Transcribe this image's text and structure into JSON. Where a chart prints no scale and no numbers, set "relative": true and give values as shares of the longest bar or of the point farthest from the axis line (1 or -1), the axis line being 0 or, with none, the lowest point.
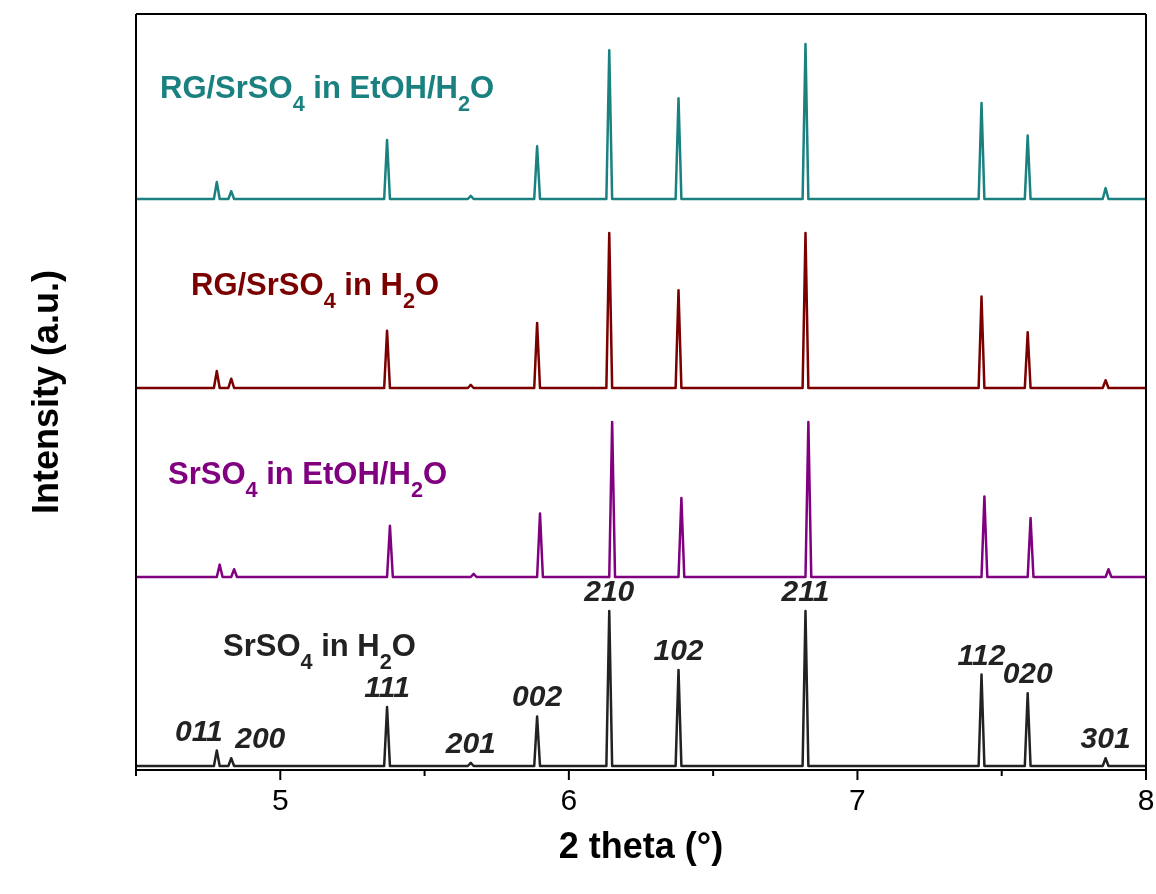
{
  "chart_data": [
    {
      "type": "line",
      "relative": true,
      "xlim": [
        4.5,
        8
      ],
      "tick_labels": false,
      "legend": false,
      "x": [
        4.5,
        4.77,
        4.78,
        4.79,
        4.82,
        4.83,
        4.84,
        5.36,
        5.37,
        5.38,
        5.65,
        5.66,
        5.67,
        5.88,
        5.89,
        5.9,
        6.13,
        6.14,
        6.15,
        6.37,
        6.38,
        6.39,
        6.81,
        6.82,
        6.83,
        7.42,
        7.43,
        7.44,
        7.58,
        7.59,
        7.6,
        7.85,
        7.86,
        7.87,
        8
      ],
      "series": [
        {
          "name": "RG/SrSO$_{4}$ in EtOH/H$_{2}$O",
          "color": "#1a8080",
          "values": [
            0,
            0,
            0.11,
            0,
            0,
            0.05,
            0,
            0,
            0.38,
            0,
            0,
            0.02,
            0,
            0,
            0.34,
            0,
            0,
            0.96,
            0,
            0,
            0.65,
            0,
            0,
            1,
            0,
            0,
            0.62,
            0,
            0,
            0.41,
            0,
            0,
            0.07,
            0,
            0
          ]
        }
      ]
    },
    {
      "type": "line",
      "relative": true,
      "xlim": [
        4.5,
        8
      ],
      "tick_labels": false,
      "legend": false,
      "x": [
        4.5,
        4.77,
        4.78,
        4.79,
        4.82,
        4.83,
        4.84,
        5.36,
        5.37,
        5.38,
        5.65,
        5.66,
        5.67,
        5.88,
        5.89,
        5.9,
        6.13,
        6.14,
        6.15,
        6.37,
        6.38,
        6.39,
        6.81,
        6.82,
        6.83,
        7.42,
        7.43,
        7.44,
        7.58,
        7.59,
        7.6,
        7.85,
        7.86,
        7.87,
        8
      ],
      "series": [
        {
          "name": "RG/SrSO$_{4}$ in H$_{2}$O",
          "color": "#7b0000",
          "values": [
            0,
            0,
            0.11,
            0,
            0,
            0.06,
            0,
            0,
            0.37,
            0,
            0,
            0.02,
            0,
            0,
            0.42,
            0,
            0,
            1,
            0,
            0,
            0.63,
            0,
            0,
            1,
            0,
            0,
            0.59,
            0,
            0,
            0.36,
            0,
            0,
            0.05,
            0,
            0
          ]
        }
      ]
    },
    {
      "type": "line",
      "relative": true,
      "xlim": [
        4.5,
        8
      ],
      "tick_labels": false,
      "legend": false,
      "x": [
        4.5,
        4.78,
        4.79,
        4.8,
        4.83,
        4.84,
        4.85,
        5.37,
        5.38,
        5.39,
        5.66,
        5.67,
        5.68,
        5.89,
        5.9,
        5.91,
        6.14,
        6.15,
        6.16,
        6.38,
        6.39,
        6.4,
        6.82,
        6.83,
        6.84,
        7.43,
        7.44,
        7.45,
        7.59,
        7.6,
        7.61,
        7.86,
        7.87,
        7.88,
        8
      ],
      "series": [
        {
          "name": "SrSO$_{4}$ in EtOH/H$_{2}$O",
          "color": "#800080",
          "values": [
            0,
            0,
            0.08,
            0,
            0,
            0.05,
            0,
            0,
            0.33,
            0,
            0,
            0.02,
            0,
            0,
            0.41,
            0,
            0,
            1,
            0,
            0,
            0.51,
            0,
            0,
            1,
            0,
            0,
            0.52,
            0,
            0,
            0.38,
            0,
            0,
            0.05,
            0,
            0
          ]
        }
      ]
    },
    {
      "type": "line",
      "relative": true,
      "xlim": [
        4.5,
        8
      ],
      "tick_labels": "x",
      "legend": false,
      "xticks": [
        {
          "value": 4.5,
          "label": null
        },
        5,
        {
          "value": 5.5,
          "label": null
        },
        6,
        {
          "value": 6.5,
          "label": null
        },
        7,
        {
          "value": 7.5,
          "label": null
        },
        8
      ],
      "xlabel": "2 theta (°)",
      "ylabel": "Intensity (a.u.)",
      "x": [
        4.5,
        4.77,
        4.78,
        4.79,
        4.82,
        4.83,
        4.84,
        5.36,
        5.37,
        5.38,
        5.65,
        5.66,
        5.67,
        5.88,
        5.89,
        5.9,
        6.13,
        6.14,
        6.15,
        6.37,
        6.38,
        6.39,
        6.81,
        6.82,
        6.83,
        7.42,
        7.43,
        7.44,
        7.58,
        7.59,
        7.6,
        7.85,
        7.86,
        7.87,
        8
      ],
      "series": [
        {
          "name": "SrSO$_{4}$ in H$_{2}$O",
          "color": "#222222",
          "values": [
            0,
            0,
            0.1,
            0,
            0,
            0.05,
            0,
            0,
            0.38,
            0,
            0,
            0.02,
            0,
            0,
            0.32,
            0,
            0,
            1,
            0,
            0,
            0.62,
            0,
            0,
            1,
            0,
            0,
            0.59,
            0,
            0,
            0.47,
            0,
            0,
            0.05,
            0,
            0
          ]
        }
      ],
      "annotations": [
        {
          "text": "011",
          "x": 4.78,
          "y": 0.1
        },
        {
          "text": "200",
          "x": 4.83,
          "y": 0.05
        },
        {
          "text": "111",
          "x": 5.37,
          "y": 0.38
        },
        {
          "text": "201",
          "x": 5.66,
          "y": 0.02
        },
        {
          "text": "002",
          "x": 5.89,
          "y": 0.32
        },
        {
          "text": "210",
          "x": 6.14,
          "y": 1
        },
        {
          "text": "102",
          "x": 6.38,
          "y": 0.62
        },
        {
          "text": "211",
          "x": 6.82,
          "y": 1
        },
        {
          "text": "112",
          "x": 7.43,
          "y": 0.59
        },
        {
          "text": "020",
          "x": 7.59,
          "y": 0.47
        },
        {
          "text": "301",
          "x": 7.86,
          "y": 0.05
        }
      ]
    }
  ]
}
